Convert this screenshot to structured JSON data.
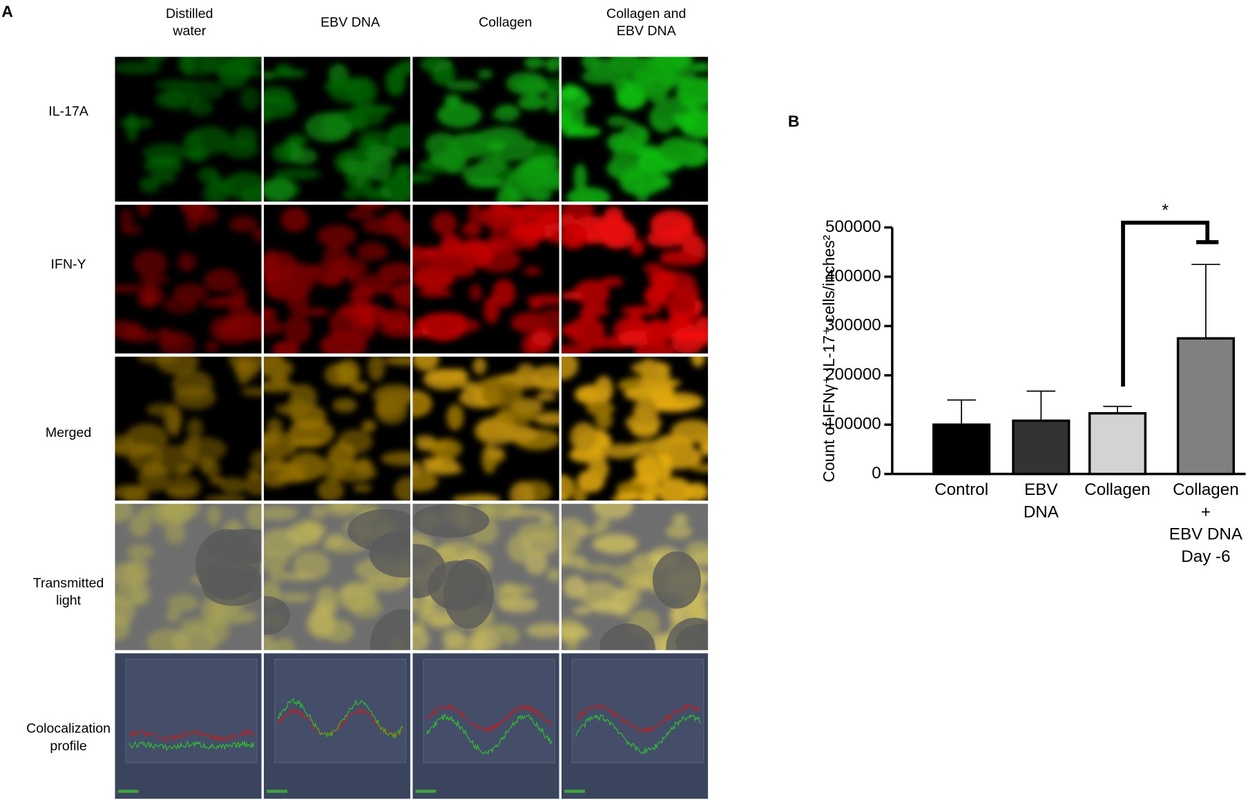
{
  "panel_a": {
    "label": "A",
    "columns": [
      [
        "Distilled",
        "water"
      ],
      [
        "EBV DNA"
      ],
      [
        "Collagen"
      ],
      [
        "Collagen and",
        "EBV DNA"
      ]
    ],
    "rows": [
      [
        "IL-17A"
      ],
      [
        "IFN-Y"
      ],
      [
        "Merged"
      ],
      [
        "Transmitted",
        "light"
      ],
      [
        "Colocalization",
        "profile"
      ]
    ]
  },
  "chart_data": {
    "type": "bar",
    "panel_label": "B",
    "categories": [
      [
        "Control"
      ],
      [
        "EBV",
        "DNA"
      ],
      [
        "Collagen"
      ],
      [
        "Collagen",
        "+",
        "EBV DNA",
        "Day -6"
      ]
    ],
    "values": [
      100000,
      108000,
      123000,
      275000
    ],
    "errors": [
      50000,
      60000,
      14000,
      150000
    ],
    "colors": [
      "#000000",
      "#333333",
      "#d3d3d3",
      "#808080"
    ],
    "ylabel": "Count of IFNγ⁺ IL-17⁺ cells/inches²",
    "ylim": [
      0,
      500000
    ],
    "yticks": [
      0,
      100000,
      200000,
      300000,
      400000,
      500000
    ],
    "annotation": "*"
  }
}
